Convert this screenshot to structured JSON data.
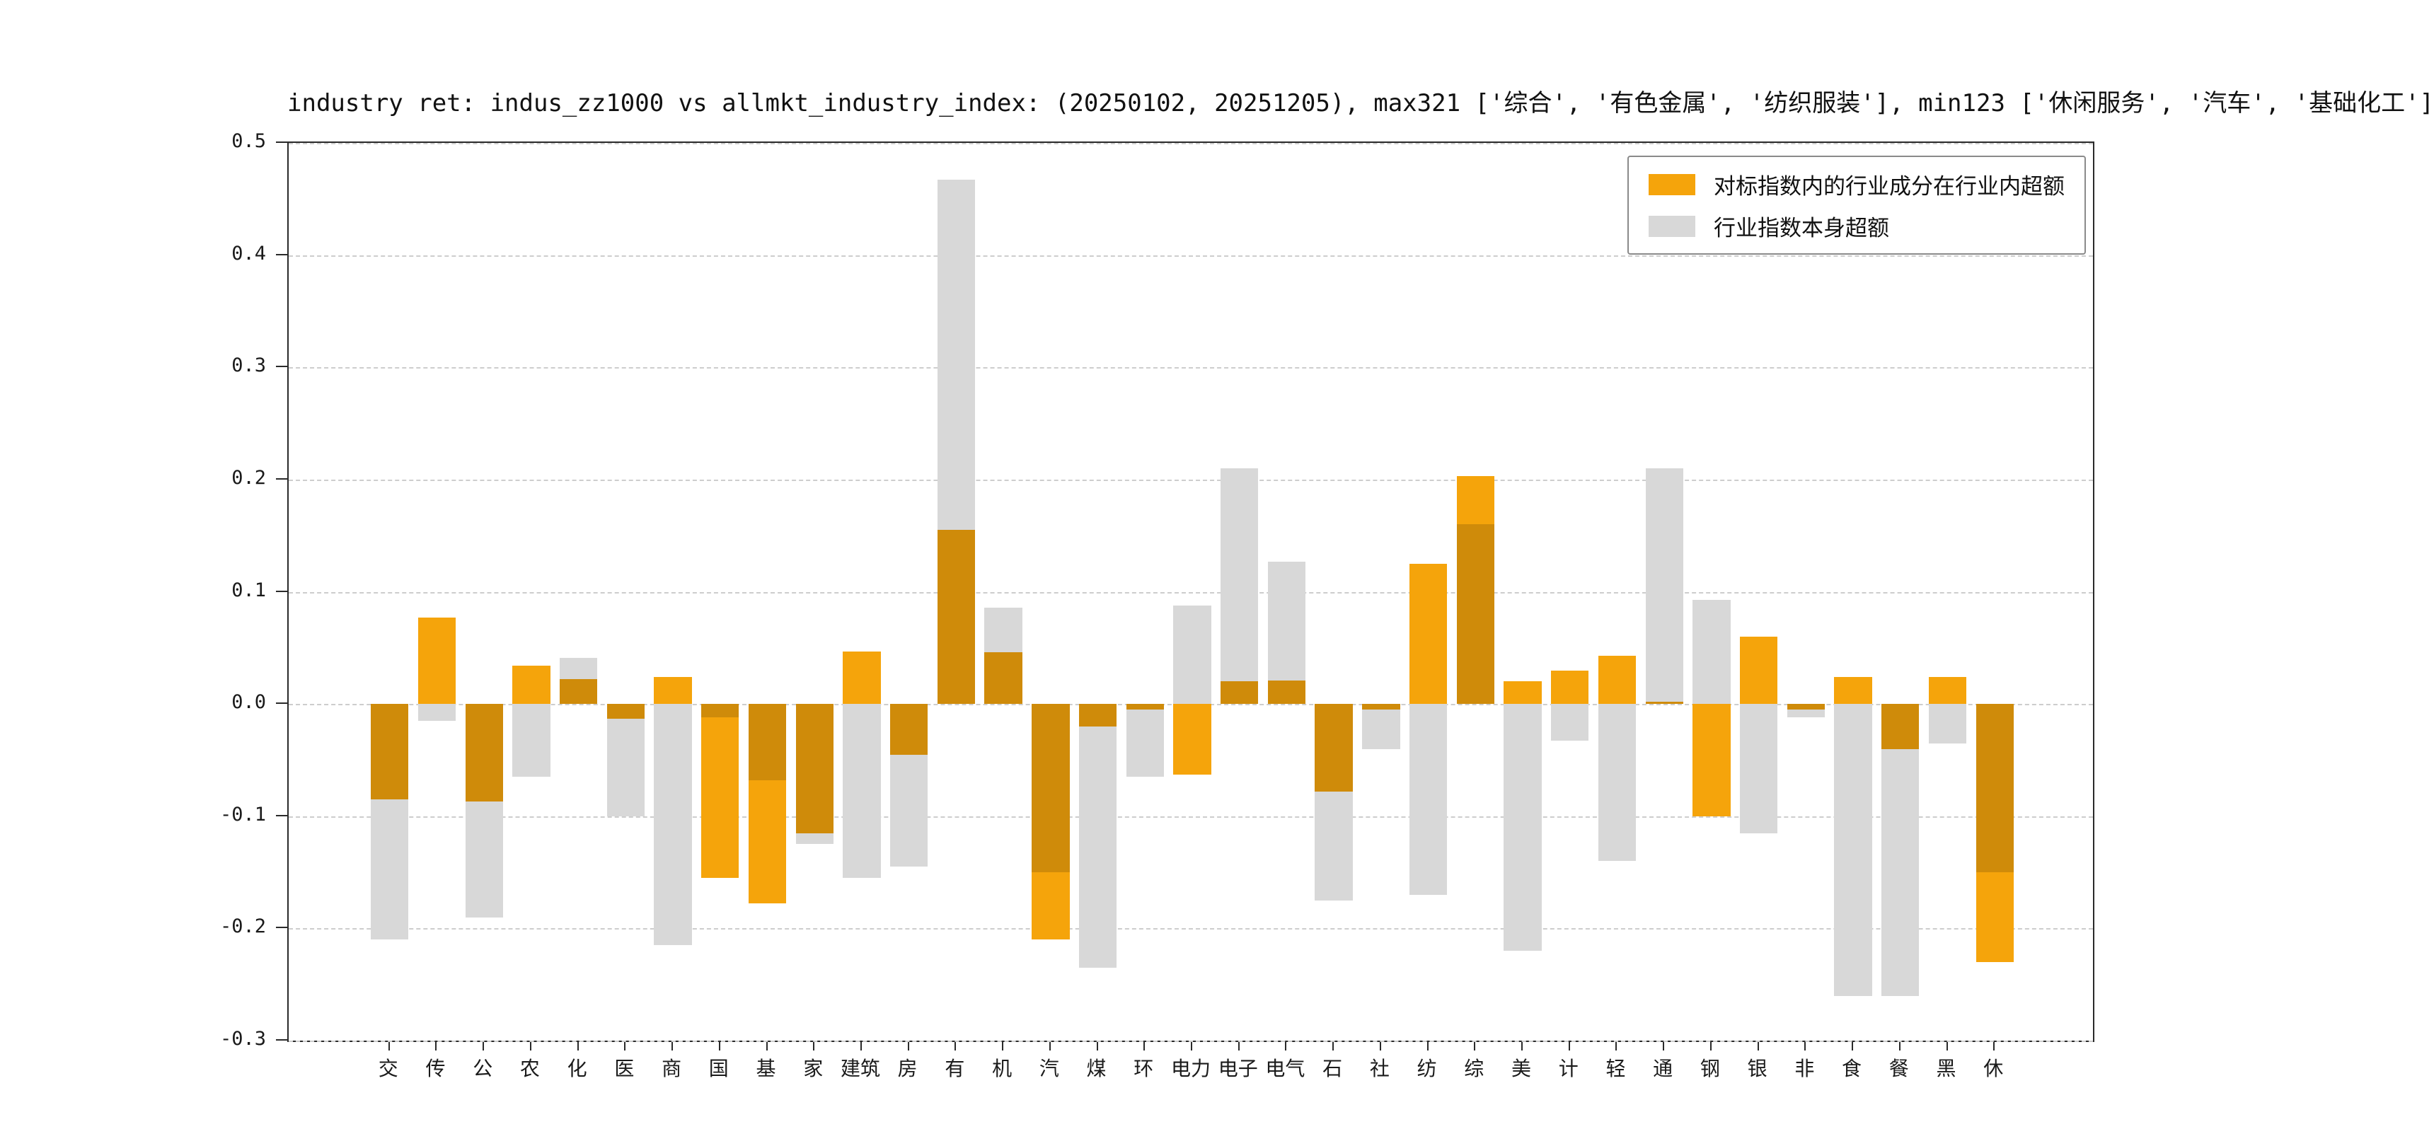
{
  "title": "industry ret: indus_zz1000 vs allmkt_industry_index: (20250102, 20251205), max321 ['综合', '有色金属', '纺织服装'], min123 ['休闲服务', '汽车', '基础化工']",
  "colors": {
    "orange": "#F5A40B",
    "gray": "#D8D8D8",
    "axis": "#2a2a2a",
    "grid": "#cdcdcd"
  },
  "chart_data": {
    "type": "bar",
    "title": "industry ret: indus_zz1000 vs allmkt_industry_index: (20250102, 20251205), max321 ['综合', '有色金属', '纺织服装'], min123 ['休闲服务', '汽车', '基础化工']",
    "categories": [
      "交",
      "传",
      "公",
      "农",
      "化",
      "医",
      "商",
      "国",
      "基",
      "家",
      "建筑",
      "房",
      "有",
      "机",
      "汽",
      "煤",
      "环",
      "电力",
      "电子",
      "电气",
      "石",
      "社",
      "纺",
      "综",
      "美",
      "计",
      "轻",
      "通",
      "钢",
      "银",
      "非",
      "食",
      "餐",
      "黑",
      "休"
    ],
    "series": [
      {
        "name": "对标指数内的行业成分在行业内超额",
        "color": "#F5A40B",
        "values": [
          -0.085,
          0.077,
          -0.087,
          0.034,
          0.022,
          -0.013,
          0.024,
          -0.155,
          -0.178,
          -0.115,
          0.047,
          -0.045,
          0.155,
          0.046,
          -0.21,
          -0.02,
          -0.005,
          -0.063,
          0.02,
          0.021,
          -0.078,
          -0.005,
          0.125,
          0.203,
          0.02,
          0.03,
          0.043,
          0.002,
          -0.1,
          0.06,
          -0.005,
          0.024,
          -0.04,
          0.024,
          -0.23
        ]
      },
      {
        "name": "行业指数本身超额",
        "color": "#D8D8D8",
        "values": [
          -0.21,
          -0.015,
          -0.19,
          -0.065,
          0.041,
          -0.1,
          -0.215,
          -0.012,
          -0.068,
          -0.125,
          -0.155,
          -0.145,
          0.467,
          0.086,
          -0.15,
          -0.235,
          -0.065,
          0.088,
          0.21,
          0.127,
          -0.175,
          -0.04,
          -0.17,
          0.16,
          -0.22,
          -0.033,
          -0.14,
          0.21,
          0.093,
          -0.115,
          -0.012,
          -0.26,
          -0.26,
          -0.035,
          -0.15
        ]
      }
    ],
    "ylim": [
      -0.3,
      0.5
    ],
    "yticks": [
      "0.5",
      "0.4",
      "0.3",
      "0.2",
      "0.1",
      "0.0",
      "-0.1",
      "-0.2",
      "-0.3"
    ],
    "grid": "dashed-horizontal",
    "legend_position": "upper-right",
    "bar_mode": "overlaid-same-x"
  }
}
